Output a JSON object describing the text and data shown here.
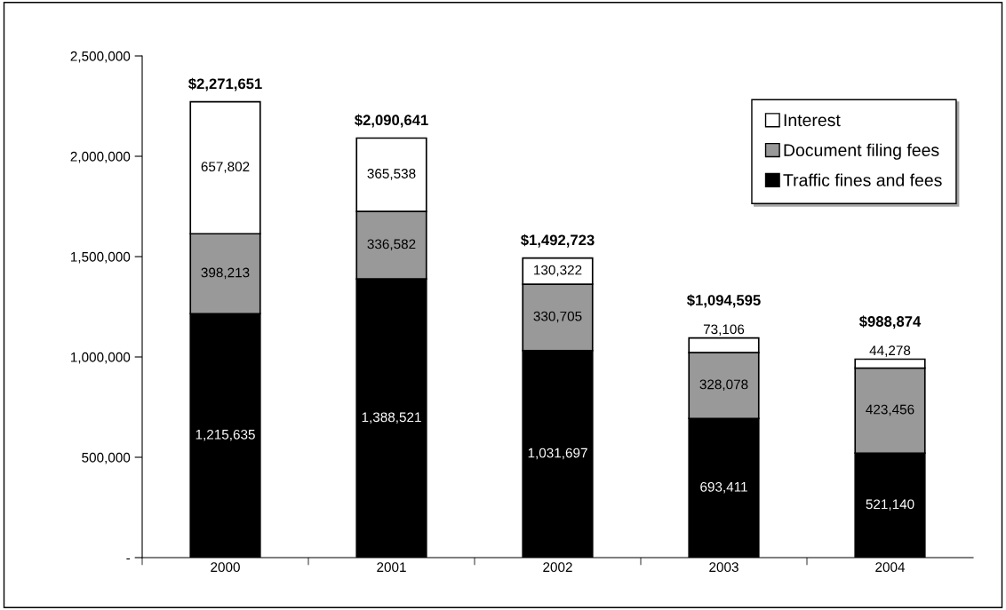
{
  "chart_data": {
    "type": "bar",
    "stacked": true,
    "categories": [
      "2000",
      "2001",
      "2002",
      "2003",
      "2004"
    ],
    "series": [
      {
        "name": "Traffic fines and fees",
        "color": "#000000",
        "values": [
          1215635,
          1388521,
          1031697,
          693411,
          521140
        ],
        "value_labels": [
          "1,215,635",
          "1,388,521",
          "1,031,697",
          "693,411",
          "521,140"
        ]
      },
      {
        "name": "Document filing fees",
        "color": "#999999",
        "values": [
          398213,
          336582,
          330705,
          328078,
          423456
        ],
        "value_labels": [
          "398,213",
          "336,582",
          "330,705",
          "328,078",
          "423,456"
        ]
      },
      {
        "name": "Interest",
        "color": "#ffffff",
        "values": [
          657802,
          365538,
          130322,
          73106,
          44278
        ],
        "value_labels": [
          "657,802",
          "365,538",
          "130,322",
          "73,106",
          "44,278"
        ]
      }
    ],
    "totals": [
      "$2,271,651",
      "$2,090,641",
      "$1,492,723",
      "$1,094,595",
      "$988,874"
    ],
    "ylim": [
      0,
      2500000
    ],
    "yticks": [
      {
        "value": 0,
        "label": "-"
      },
      {
        "value": 500000,
        "label": "500,000"
      },
      {
        "value": 1000000,
        "label": "1,000,000"
      },
      {
        "value": 1500000,
        "label": "1,500,000"
      },
      {
        "value": 2000000,
        "label": "2,000,000"
      },
      {
        "value": 2500000,
        "label": "2,500,000"
      }
    ],
    "grid": false,
    "legend": "top right"
  }
}
